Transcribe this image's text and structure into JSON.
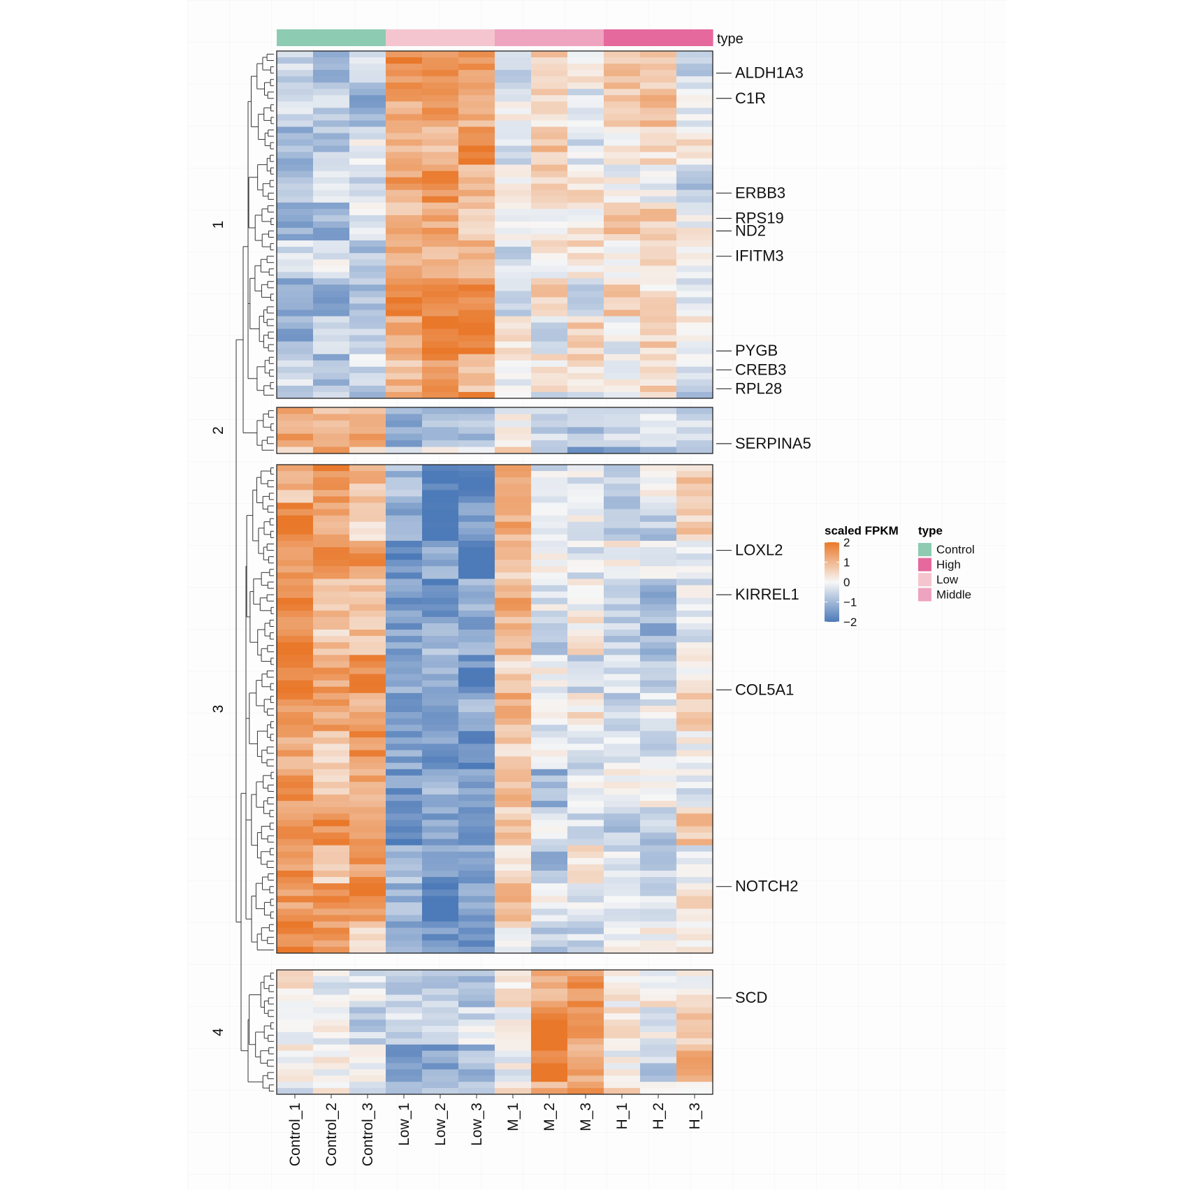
{
  "chart_data": {
    "type": "heatmap",
    "annotation_title": "type",
    "columns": [
      "Control_1",
      "Control_2",
      "Control_3",
      "Low_1",
      "Low_2",
      "Low_3",
      "M_1",
      "M_2",
      "M_3",
      "H_1",
      "H_2",
      "H_3"
    ],
    "column_groups": [
      "Control",
      "Control",
      "Control",
      "Low",
      "Low",
      "Low",
      "Middle",
      "Middle",
      "Middle",
      "High",
      "High",
      "High"
    ],
    "clusters": [
      {
        "label": "1",
        "n_rows": 55,
        "profile": [
          -0.8,
          -0.7,
          -0.7,
          1.1,
          1.4,
          1.2,
          -0.3,
          0.2,
          0.0,
          0.3,
          0.4,
          -0.3
        ]
      },
      {
        "label": "2",
        "n_rows": 7,
        "profile": [
          1.3,
          1.2,
          0.9,
          -0.5,
          -0.2,
          -0.4,
          0.5,
          -0.7,
          -0.8,
          -0.6,
          -0.5,
          -0.4
        ]
      },
      {
        "label": "3",
        "n_rows": 77,
        "profile": [
          1.4,
          1.1,
          1.2,
          -1.4,
          -1.5,
          -1.5,
          0.7,
          -0.5,
          -0.1,
          -0.3,
          -0.5,
          0.3
        ]
      },
      {
        "label": "4",
        "n_rows": 20,
        "profile": [
          -0.2,
          -0.4,
          -0.2,
          -0.8,
          -0.8,
          -0.8,
          0.0,
          1.4,
          1.3,
          0.1,
          -0.1,
          0.5
        ]
      }
    ],
    "gene_labels": [
      {
        "label": "ALDH1A3",
        "cluster": 0,
        "row": 3
      },
      {
        "label": "C1R",
        "cluster": 0,
        "row": 7
      },
      {
        "label": "ERBB3",
        "cluster": 0,
        "row": 22
      },
      {
        "label": "RPS19",
        "cluster": 0,
        "row": 26
      },
      {
        "label": "ND2",
        "cluster": 0,
        "row": 28
      },
      {
        "label": "IFITM3",
        "cluster": 0,
        "row": 32
      },
      {
        "label": "PYGB",
        "cluster": 0,
        "row": 47
      },
      {
        "label": "CREB3",
        "cluster": 0,
        "row": 50
      },
      {
        "label": "RPL28",
        "cluster": 0,
        "row": 53
      },
      {
        "label": "SERPINA5",
        "cluster": 1,
        "row": 5
      },
      {
        "label": "LOXL2",
        "cluster": 2,
        "row": 13
      },
      {
        "label": "KIRREL1",
        "cluster": 2,
        "row": 20
      },
      {
        "label": "COL5A1",
        "cluster": 2,
        "row": 35
      },
      {
        "label": "NOTCH2",
        "cluster": 2,
        "row": 66
      },
      {
        "label": "SCD",
        "cluster": 3,
        "row": 4
      }
    ],
    "color_scale": {
      "title": "scaled FPKM",
      "range": [
        -2,
        2
      ],
      "ticks": [
        "2",
        "1",
        "0",
        "−1",
        "−2"
      ],
      "low_color": "#4d7ab8",
      "mid_color": "#f7f7f7",
      "high_color": "#e9782a"
    },
    "type_legend": {
      "title": "type",
      "entries": [
        {
          "label": "Control",
          "color": "#8dcbb3"
        },
        {
          "label": "High",
          "color": "#e5699c"
        },
        {
          "label": "Low",
          "color": "#f4c5cf"
        },
        {
          "label": "Middle",
          "color": "#eea3bf"
        }
      ]
    }
  }
}
